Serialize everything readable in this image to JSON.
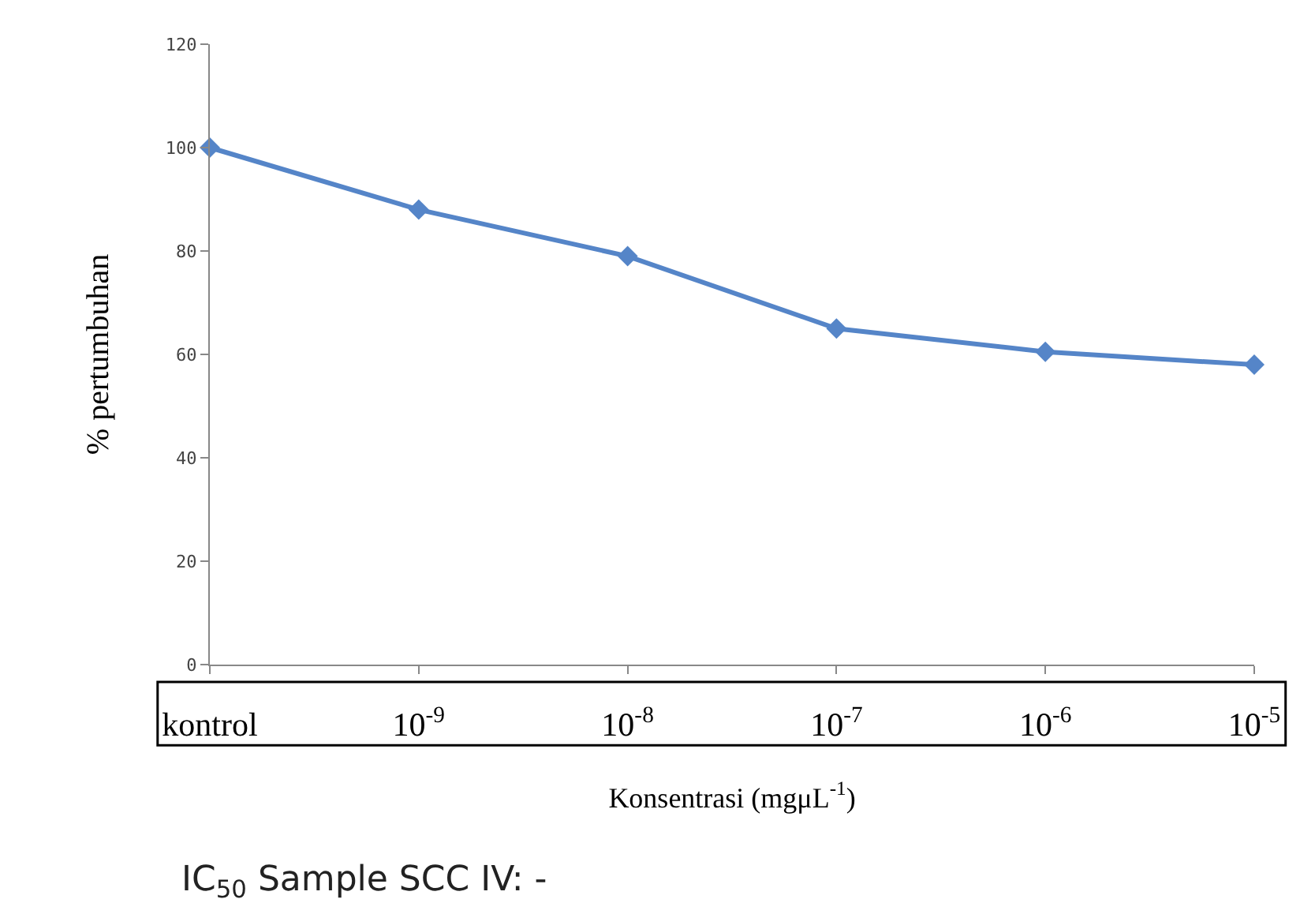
{
  "chart_data": {
    "type": "line",
    "categories": [
      "kontrol",
      "10$^{-9}$",
      "10$^{-8}$",
      "10$^{-7}$",
      "10$^{-6}$",
      "10$^{-5}$"
    ],
    "series": [
      {
        "color": "#5585c8",
        "values": [
          100,
          88,
          79,
          65,
          60.5,
          58
        ]
      }
    ],
    "xlabel": "Konsentrasi (mgμL$^{-1}$)",
    "ylabel": "% pertumbuhan",
    "ylim": [
      0,
      120
    ],
    "yticks": [
      0,
      20,
      40,
      60,
      80,
      100,
      120
    ],
    "marker": "diamond",
    "line_style": "solid",
    "annotations": [
      "IC$_{50}$ Sample SCC IV: -"
    ]
  }
}
